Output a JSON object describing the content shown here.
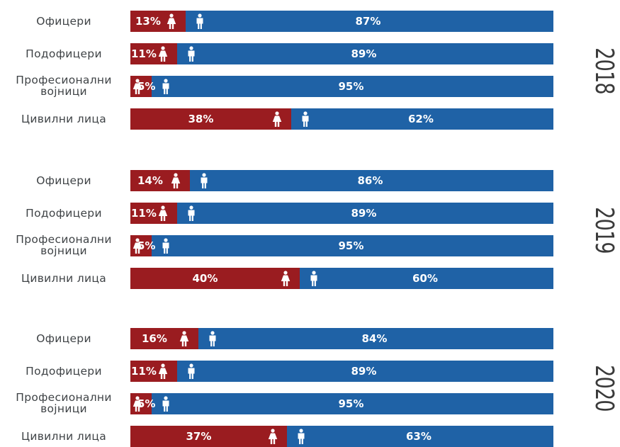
{
  "chart_data": {
    "type": "bar",
    "stacked": true,
    "orientation": "horizontal",
    "colors": {
      "female": "#9a1c20",
      "male": "#1f62a6"
    },
    "icons": {
      "female": "female-figure-icon",
      "male": "male-figure-icon"
    },
    "categories": [
      "Офицери",
      "Подофицери",
      "Професионални војници",
      "Цивилни лица"
    ],
    "category_lines": [
      [
        "Офицери"
      ],
      [
        "Подофицери"
      ],
      [
        "Професионални",
        "војници"
      ],
      [
        "Цивилни лица"
      ]
    ],
    "groups": [
      {
        "year": "2018",
        "female_pct": [
          13,
          11,
          5,
          38
        ],
        "male_pct": [
          87,
          89,
          95,
          62
        ]
      },
      {
        "year": "2019",
        "female_pct": [
          14,
          11,
          5,
          40
        ],
        "male_pct": [
          86,
          89,
          95,
          60
        ]
      },
      {
        "year": "2020",
        "female_pct": [
          16,
          11,
          5,
          37
        ],
        "male_pct": [
          84,
          89,
          95,
          63
        ]
      }
    ],
    "xlim": [
      0,
      100
    ]
  }
}
